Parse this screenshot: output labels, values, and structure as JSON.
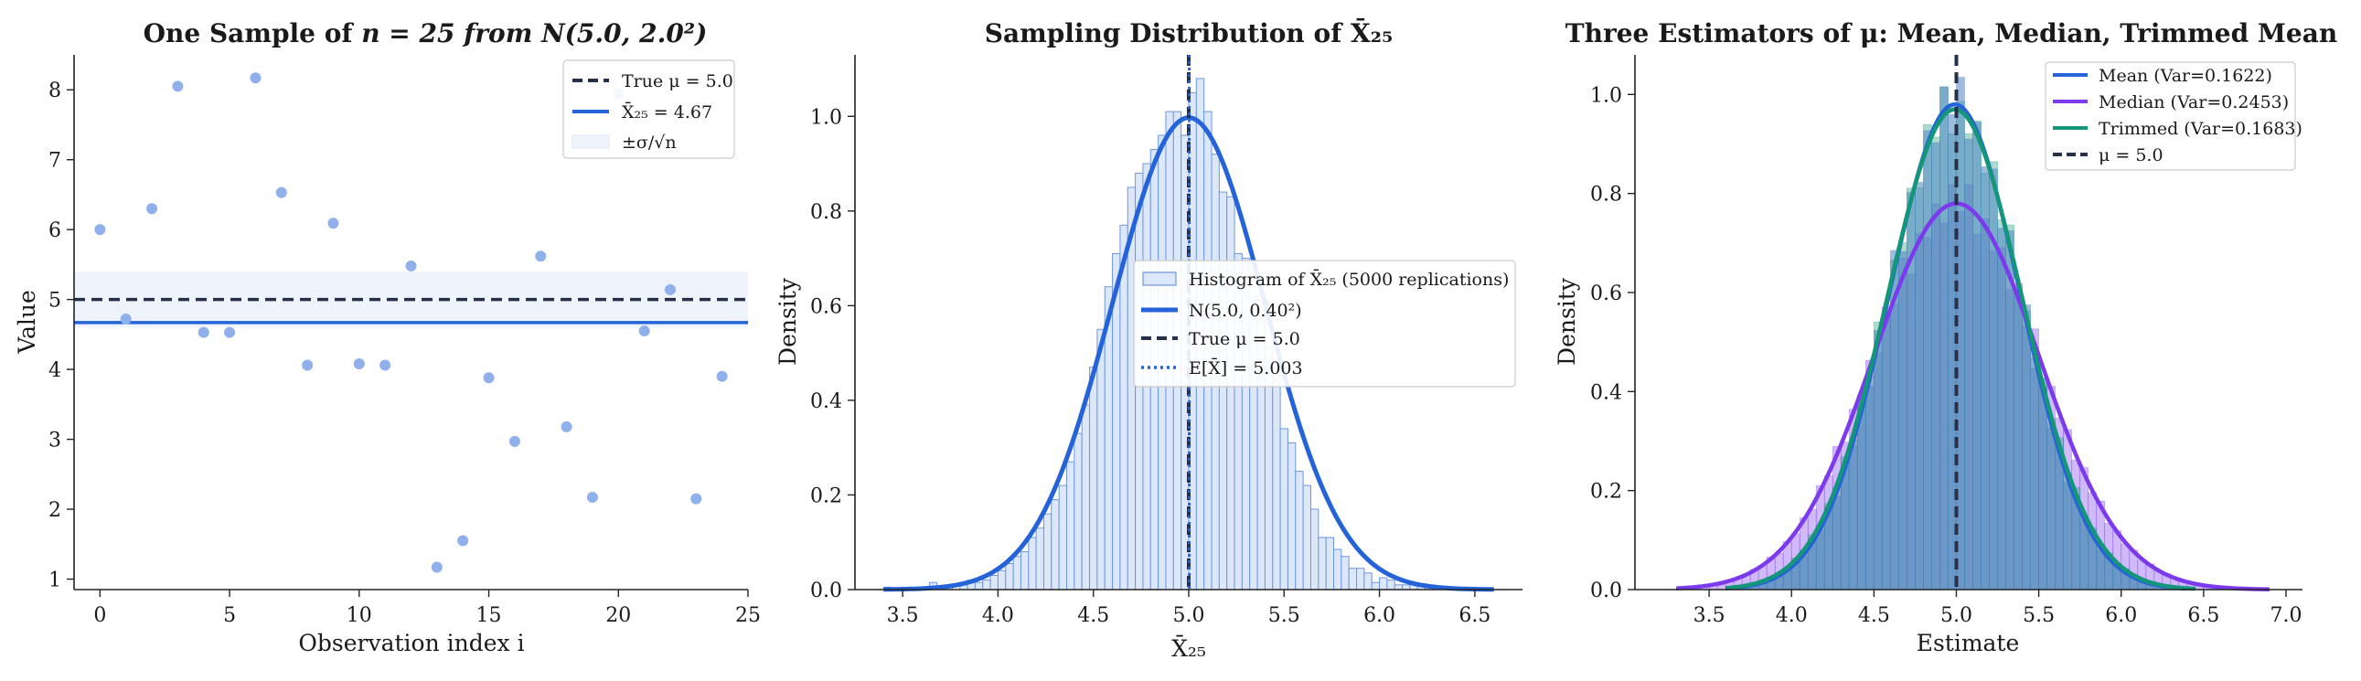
{
  "colors": {
    "scatter": "#8fb0ea",
    "mean_line": "#2563d9",
    "true_line": "#263048",
    "band": "#eef3fc",
    "hist_fill": "#dce8fa",
    "hist_edge": "#6f97de",
    "median": "#7c3aed",
    "trimmed": "#14967a",
    "stack": "#4f86c2"
  },
  "chart_data": [
    {
      "type": "scatter",
      "title_prefix": "One Sample of ",
      "title_math": "n = 25 from N(5.0, 2.0²)",
      "xlabel": "Observation index i",
      "ylabel": "Value",
      "xlim": [
        -1,
        25
      ],
      "ylim": [
        0.85,
        8.5
      ],
      "xticks": [
        0,
        5,
        10,
        15,
        20,
        25
      ],
      "yticks": [
        1,
        2,
        3,
        4,
        5,
        6,
        7,
        8
      ],
      "x": [
        0,
        1,
        2,
        3,
        4,
        5,
        6,
        7,
        8,
        9,
        10,
        11,
        12,
        13,
        14,
        15,
        16,
        17,
        18,
        19,
        20,
        21,
        22,
        23,
        24
      ],
      "y": [
        6.0,
        4.72,
        6.3,
        8.05,
        4.53,
        4.53,
        8.17,
        6.53,
        4.06,
        6.09,
        4.08,
        4.06,
        5.48,
        1.17,
        1.55,
        3.88,
        2.97,
        5.62,
        3.18,
        2.17,
        7.95,
        4.55,
        5.14,
        2.15,
        3.9
      ],
      "true_mu": 5.0,
      "sample_mean": 4.67,
      "band": [
        4.6,
        5.4
      ],
      "legend": [
        {
          "label": "True μ = 5.0",
          "style": "dashed"
        },
        {
          "label": "X̄₂₅ = 4.67",
          "style": "solid"
        },
        {
          "label": "±σ/√n",
          "style": "band"
        }
      ],
      "legend_position": "top-right",
      "grid": false
    },
    {
      "type": "bar",
      "title": "Sampling Distribution of X̄₂₅",
      "xlabel": "X̄₂₅",
      "ylabel": "Density",
      "xlim": [
        3.25,
        6.75
      ],
      "ylim": [
        0,
        1.13
      ],
      "xticks": [
        3.5,
        4.0,
        4.5,
        5.0,
        5.5,
        6.0,
        6.5
      ],
      "yticks": [
        0.0,
        0.2,
        0.4,
        0.6,
        0.8,
        1.0
      ],
      "hist_start": 3.4,
      "bin_width": 0.04,
      "hist_values": [
        0.005,
        0.0,
        0.0,
        0.0,
        0.005,
        0.0,
        0.015,
        0.005,
        0.005,
        0.0,
        0.01,
        0.02,
        0.015,
        0.02,
        0.03,
        0.04,
        0.055,
        0.07,
        0.08,
        0.11,
        0.13,
        0.16,
        0.19,
        0.22,
        0.27,
        0.33,
        0.39,
        0.47,
        0.55,
        0.64,
        0.71,
        0.77,
        0.85,
        0.88,
        0.9,
        0.93,
        0.96,
        1.01,
        1.01,
        0.96,
        1.05,
        1.08,
        1.01,
        0.92,
        0.84,
        0.83,
        0.71,
        0.7,
        0.62,
        0.59,
        0.51,
        0.44,
        0.34,
        0.31,
        0.25,
        0.22,
        0.17,
        0.11,
        0.11,
        0.085,
        0.07,
        0.045,
        0.045,
        0.035,
        0.015,
        0.025,
        0.02,
        0.01,
        0.01,
        0.01,
        0.01,
        0.005,
        0.0,
        0.0,
        0.005
      ],
      "normal_mu": 5.0,
      "normal_sd": 0.4,
      "true_mu": 5.0,
      "empirical_mean": 5.003,
      "legend": [
        {
          "label": "Histogram of X̄₂₅ (5000 replications)",
          "style": "hist"
        },
        {
          "label": "N(5.0, 0.40²)",
          "style": "solid"
        },
        {
          "label": "True μ = 5.0",
          "style": "dashed"
        },
        {
          "label": "E[X̄] = 5.003",
          "style": "dotted"
        }
      ],
      "legend_position": "center-right",
      "grid": false
    },
    {
      "type": "area",
      "title": "Three Estimators of μ: Mean, Median, Trimmed Mean",
      "xlabel": "Estimate",
      "ylabel": "Density",
      "xlim": [
        3.05,
        7.1
      ],
      "ylim": [
        0,
        1.08
      ],
      "xticks": [
        3.5,
        4.0,
        4.5,
        5.0,
        5.5,
        6.0,
        6.5,
        7.0
      ],
      "yticks": [
        0.0,
        0.2,
        0.4,
        0.6,
        0.8,
        1.0
      ],
      "true_mu": 5.0,
      "series": [
        {
          "name": "Mean (Var=0.1622)",
          "mu": 4.99,
          "sd": 0.4,
          "peak": 0.98,
          "range": [
            3.6,
            6.4
          ]
        },
        {
          "name": "Median (Var=0.2453)",
          "mu": 5.0,
          "sd": 0.5,
          "peak": 0.78,
          "range": [
            3.3,
            6.9
          ]
        },
        {
          "name": "Trimmed (Var=0.1683)",
          "mu": 4.99,
          "sd": 0.41,
          "peak": 0.97,
          "range": [
            3.6,
            6.45
          ]
        }
      ],
      "legend": [
        {
          "label": "Mean (Var=0.1622)",
          "style": "solid"
        },
        {
          "label": "Median (Var=0.2453)",
          "style": "solid"
        },
        {
          "label": "Trimmed (Var=0.1683)",
          "style": "solid"
        },
        {
          "label": "μ = 5.0",
          "style": "dashed"
        }
      ],
      "legend_position": "top-right",
      "grid": false
    }
  ]
}
